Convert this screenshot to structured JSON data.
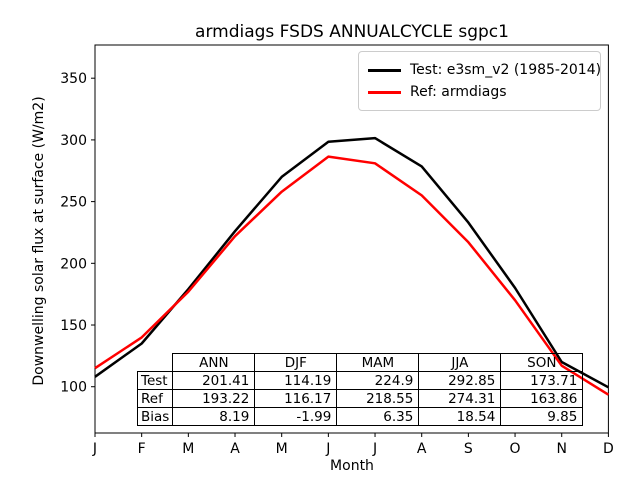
{
  "title": "armdiags FSDS ANNUALCYCLE sgpc1",
  "chart_data": {
    "type": "line",
    "title": "armdiags FSDS ANNUALCYCLE sgpc1",
    "xlabel": "Month",
    "ylabel": "Downwelling solar flux at surface (W/m2)",
    "x_tick_labels": [
      "J",
      "F",
      "M",
      "A",
      "M",
      "J",
      "J",
      "A",
      "S",
      "O",
      "N",
      "D"
    ],
    "yticks": [
      100,
      150,
      200,
      250,
      300,
      350
    ],
    "ylim": [
      62.5,
      376.9
    ],
    "grid": false,
    "legend_position": "upper right",
    "series": [
      {
        "name": "Test: e3sm_v2 (1985-2014)",
        "color": "#000000",
        "values": [
          108,
          135,
          179,
          226,
          270,
          298.5,
          301.5,
          278.5,
          233,
          180,
          120,
          99.5
        ]
      },
      {
        "name": "Ref: armdiags",
        "color": "#ff0000",
        "values": [
          115,
          140,
          177,
          222,
          258,
          286.5,
          281,
          255,
          217,
          170,
          117,
          93.5
        ]
      }
    ],
    "stats_table": {
      "columns": [
        "ANN",
        "DJF",
        "MAM",
        "JJA",
        "SON"
      ],
      "rows": [
        {
          "label": "Test",
          "values": [
            "201.41",
            "114.19",
            "224.9",
            "292.85",
            "173.71"
          ]
        },
        {
          "label": "Ref",
          "values": [
            "193.22",
            "116.17",
            "218.55",
            "274.31",
            "163.86"
          ]
        },
        {
          "label": "Bias",
          "values": [
            "8.19",
            "-1.99",
            "6.35",
            "18.54",
            "9.85"
          ]
        }
      ]
    }
  }
}
